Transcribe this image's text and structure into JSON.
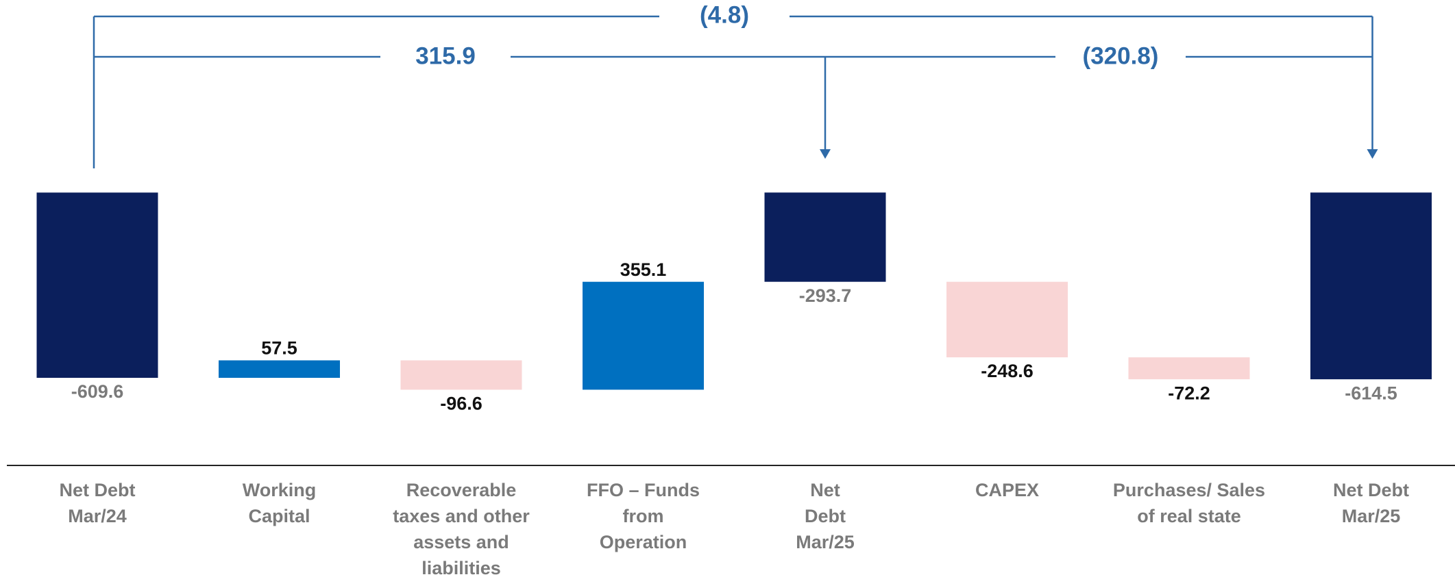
{
  "chart_data": {
    "type": "waterfall",
    "categories": [
      "Net Debt\nMar/24",
      "Working\nCapital",
      "Recoverable\ntaxes and other\nassets and\nliabilities",
      "FFO – Funds\nfrom\nOperation",
      "Net\nDebt\nMar/25",
      "CAPEX",
      "Purchases/ Sales\nof real state",
      "Net Debt\nMar/25"
    ],
    "values": [
      -609.6,
      57.5,
      -96.6,
      355.1,
      -293.7,
      -248.6,
      -72.2,
      -614.5
    ],
    "measure": [
      "total",
      "relative",
      "relative",
      "relative",
      "total",
      "relative",
      "relative",
      "total"
    ],
    "colors": [
      "#0b1f5c",
      "#0070c0",
      "#f9d5d5",
      "#0070c0",
      "#0b1f5c",
      "#f9d5d5",
      "#f9d5d5",
      "#0b1f5c"
    ],
    "annotations": [
      "(4.8)",
      "315.9",
      "(320.8)"
    ],
    "annotation_color": "#2e6aa8"
  }
}
